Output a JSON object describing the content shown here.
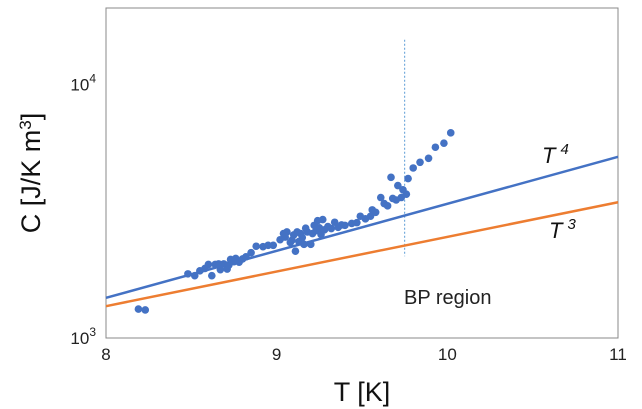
{
  "chart_data": {
    "type": "scatter",
    "xlabel": "T [K]",
    "ylabel_main": "C [J/K m",
    "ylabel_sup": "3",
    "ylabel_close": "]",
    "x_range": [
      8,
      11
    ],
    "y_range": [
      1000,
      20000
    ],
    "y_scale": "log",
    "x_ticks": [
      "8",
      "9",
      "10",
      "11"
    ],
    "y_ticks": [
      {
        "value": 1000,
        "base": "10",
        "exp": "3"
      },
      {
        "value": 10000,
        "base": "10",
        "exp": "4"
      }
    ],
    "series": [
      {
        "type": "scatter",
        "color": "#4472C4",
        "points": [
          [
            8.19,
            1300
          ],
          [
            8.23,
            1290
          ],
          [
            8.48,
            1790
          ],
          [
            8.52,
            1760
          ],
          [
            8.55,
            1840
          ],
          [
            8.58,
            1880
          ],
          [
            8.6,
            1950
          ],
          [
            8.62,
            1760
          ],
          [
            8.64,
            1950
          ],
          [
            8.66,
            1960
          ],
          [
            8.67,
            1860
          ],
          [
            8.69,
            1960
          ],
          [
            8.71,
            1870
          ],
          [
            8.72,
            1940
          ],
          [
            8.73,
            2040
          ],
          [
            8.75,
            2000
          ],
          [
            8.76,
            2060
          ],
          [
            8.78,
            1990
          ],
          [
            8.8,
            2050
          ],
          [
            8.82,
            2090
          ],
          [
            8.85,
            2170
          ],
          [
            8.88,
            2300
          ],
          [
            8.92,
            2290
          ],
          [
            8.95,
            2320
          ],
          [
            8.98,
            2320
          ],
          [
            9.02,
            2440
          ],
          [
            9.04,
            2580
          ],
          [
            9.05,
            2500
          ],
          [
            9.06,
            2620
          ],
          [
            9.08,
            2380
          ],
          [
            9.09,
            2430
          ],
          [
            9.1,
            2550
          ],
          [
            9.11,
            2200
          ],
          [
            9.12,
            2620
          ],
          [
            9.13,
            2400
          ],
          [
            9.14,
            2580
          ],
          [
            9.15,
            2490
          ],
          [
            9.16,
            2340
          ],
          [
            9.17,
            2710
          ],
          [
            9.18,
            2620
          ],
          [
            9.2,
            2340
          ],
          [
            9.21,
            2580
          ],
          [
            9.22,
            2780
          ],
          [
            9.23,
            2650
          ],
          [
            9.24,
            2900
          ],
          [
            9.25,
            2720
          ],
          [
            9.26,
            2560
          ],
          [
            9.27,
            2930
          ],
          [
            9.28,
            2670
          ],
          [
            9.3,
            2750
          ],
          [
            9.32,
            2700
          ],
          [
            9.34,
            2860
          ],
          [
            9.36,
            2730
          ],
          [
            9.38,
            2790
          ],
          [
            9.4,
            2780
          ],
          [
            9.44,
            2830
          ],
          [
            9.47,
            2850
          ],
          [
            9.49,
            3020
          ],
          [
            9.52,
            2950
          ],
          [
            9.55,
            3020
          ],
          [
            9.56,
            3200
          ],
          [
            9.58,
            3130
          ],
          [
            9.61,
            3580
          ],
          [
            9.63,
            3390
          ],
          [
            9.65,
            3320
          ],
          [
            9.67,
            4300
          ],
          [
            9.68,
            3550
          ],
          [
            9.7,
            3500
          ],
          [
            9.71,
            3990
          ],
          [
            9.73,
            3580
          ],
          [
            9.74,
            3840
          ],
          [
            9.76,
            3690
          ],
          [
            9.77,
            4250
          ],
          [
            9.8,
            4680
          ],
          [
            9.84,
            4930
          ],
          [
            9.89,
            5110
          ],
          [
            9.93,
            5650
          ],
          [
            9.98,
            5860
          ],
          [
            10.02,
            6440
          ]
        ]
      },
      {
        "type": "line",
        "label": "T",
        "exponent": "4",
        "color": "#4472C4",
        "x": [
          8,
          11
        ],
        "y": [
          1440,
          5180
        ]
      },
      {
        "type": "line",
        "label": "T",
        "exponent": "3",
        "color": "#ED7D31",
        "x": [
          8,
          11
        ],
        "y": [
          1335,
          3430
        ]
      }
    ],
    "annotation": {
      "text": "BP region",
      "x": 9.75,
      "y_top": 15000,
      "y_bottom": 2100,
      "color": "#5B9BD5"
    },
    "grid": false,
    "legend": "none"
  }
}
